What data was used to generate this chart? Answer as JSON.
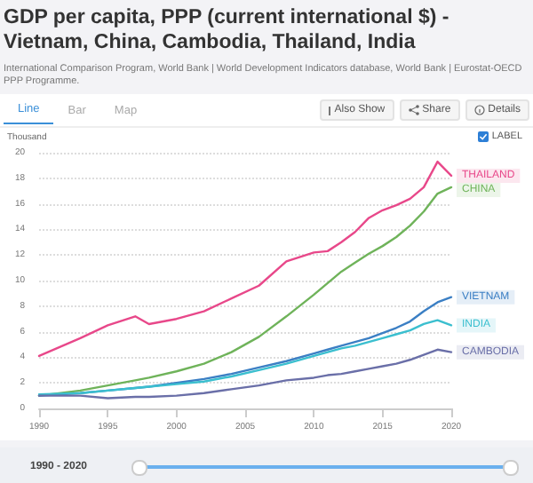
{
  "chart_data": {
    "type": "line",
    "title": "GDP per capita, PPP (current international $) - Vietnam, China, Cambodia, Thailand, India",
    "subtitle": "International Comparison Program, World Bank | World Development Indicators database, World Bank | Eurostat-OECD PPP Programme.",
    "ylabel": "Thousand",
    "annotations": [
      "Line",
      "Bar",
      "Map",
      "Also Show",
      "Share",
      "Details",
      "LABEL",
      "1990 - 2020"
    ],
    "x": [
      1990,
      1993,
      1995,
      1997,
      1998,
      2000,
      2002,
      2004,
      2006,
      2008,
      2010,
      2011,
      2012,
      2013,
      2014,
      2015,
      2016,
      2017,
      2018,
      2019,
      2020
    ],
    "series": [
      {
        "name": "THAILAND",
        "color": "#e8488a",
        "values": [
          4.1,
          5.5,
          6.5,
          7.2,
          6.6,
          7.0,
          7.6,
          8.6,
          9.6,
          11.5,
          12.2,
          12.3,
          13.0,
          13.8,
          14.9,
          15.5,
          15.9,
          16.4,
          17.3,
          19.3,
          18.2
        ]
      },
      {
        "name": "CHINA",
        "color": "#6fb35a",
        "values": [
          1.0,
          1.4,
          1.8,
          2.2,
          2.4,
          2.9,
          3.5,
          4.4,
          5.6,
          7.2,
          8.9,
          9.8,
          10.7,
          11.4,
          12.1,
          12.7,
          13.4,
          14.3,
          15.4,
          16.8,
          17.3
        ]
      },
      {
        "name": "VIETNAM",
        "color": "#3b7fc4",
        "values": [
          1.0,
          1.2,
          1.4,
          1.6,
          1.7,
          2.0,
          2.3,
          2.7,
          3.2,
          3.7,
          4.3,
          4.6,
          4.9,
          5.2,
          5.5,
          5.9,
          6.3,
          6.8,
          7.6,
          8.3,
          8.7
        ]
      },
      {
        "name": "INDIA",
        "color": "#3bbfcf",
        "values": [
          1.1,
          1.2,
          1.4,
          1.6,
          1.7,
          1.9,
          2.1,
          2.5,
          3.0,
          3.5,
          4.1,
          4.4,
          4.7,
          4.9,
          5.2,
          5.5,
          5.8,
          6.1,
          6.6,
          6.9,
          6.5
        ]
      },
      {
        "name": "CAMBODIA",
        "color": "#6a6fa8",
        "values": [
          1.0,
          1.0,
          0.8,
          0.9,
          0.9,
          1.0,
          1.2,
          1.5,
          1.8,
          2.2,
          2.4,
          2.6,
          2.7,
          2.9,
          3.1,
          3.3,
          3.5,
          3.8,
          4.2,
          4.6,
          4.4
        ]
      }
    ],
    "xlim": [
      1990,
      2020
    ],
    "xticks": [
      1990,
      1995,
      2000,
      2005,
      2010,
      2015,
      2020
    ],
    "ylim": [
      0,
      20
    ],
    "yticks": [
      0,
      2,
      4,
      6,
      8,
      10,
      12,
      14,
      16,
      18,
      20
    ],
    "grid": "y",
    "legend": false,
    "marker": "none",
    "line_style": "solid"
  }
}
